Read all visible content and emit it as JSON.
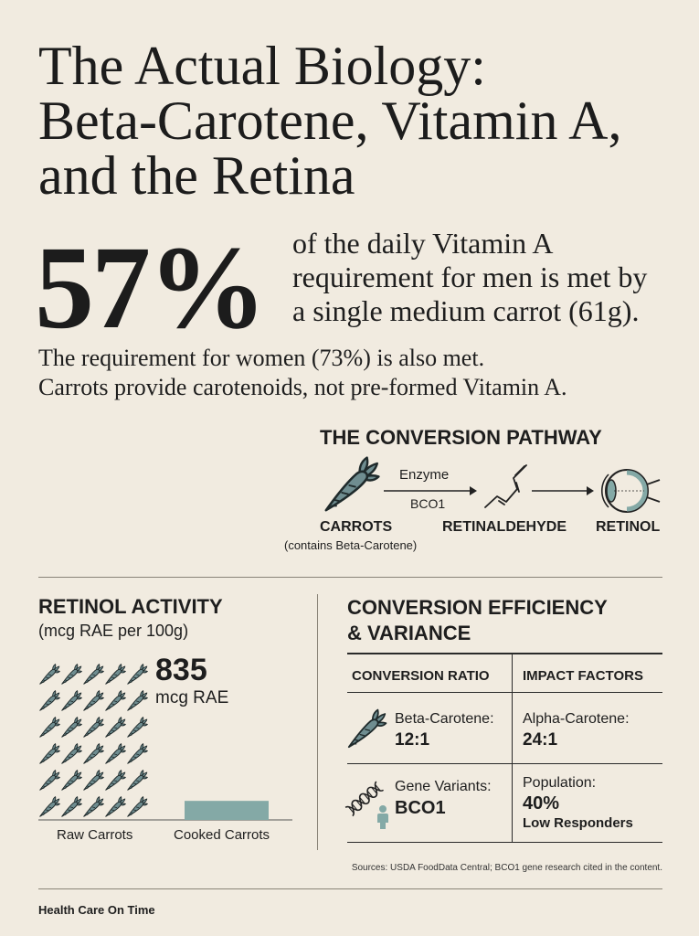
{
  "title": {
    "lines": [
      "The Actual Biology:",
      "Beta-Carotene, Vitamin A,",
      "and the Retina"
    ]
  },
  "headline_stat": {
    "value": "57%",
    "lines": [
      "of the daily Vitamin A",
      "requirement for men is met by",
      "a single medium carrot (61g)."
    ]
  },
  "note": {
    "lines": [
      "The requirement for women (73%) is also met.",
      "Carrots provide carotenoids, not pre-formed Vitamin A."
    ]
  },
  "pathway": {
    "heading": "THE CONVERSION PATHWAY",
    "enzyme_label": "Enzyme",
    "enzyme_name": "BCO1",
    "steps": [
      {
        "label": "CARROTS",
        "sublabel": "(contains Beta-Carotene)",
        "icon": "carrot-icon"
      },
      {
        "label": "RETINALDEHYDE",
        "icon": "molecule-icon"
      },
      {
        "label": "RETINOL",
        "icon": "eye-icon"
      }
    ]
  },
  "chart_data": {
    "type": "bar",
    "title": "RETINOL ACTIVITY",
    "subtitle": "(mcg RAE per 100g)",
    "categories": [
      "Raw Carrots",
      "Cooked Carrots"
    ],
    "values": [
      835,
      100
    ],
    "value_label": "835",
    "unit_label": "mcg RAE",
    "grid": false
  },
  "efficiency": {
    "heading_lines": [
      "CONVERSION EFFICIENCY",
      "& VARIANCE"
    ],
    "table": {
      "headers": [
        "CONVERSION RATIO",
        "IMPACT FACTORS"
      ],
      "rows": [
        [
          {
            "label": "Beta-Carotene:",
            "value": "12:1",
            "icon": "carrot-icon"
          },
          {
            "label": "Alpha-Carotene:",
            "value": "24:1"
          }
        ],
        [
          {
            "label": "Gene Variants:",
            "value": "BCO1",
            "icon": "dna-person-icon"
          },
          {
            "label": "Population:",
            "value": "40%",
            "note": "Low Responders"
          }
        ]
      ]
    }
  },
  "sources": "Sources: USDA FoodData Central; BCO1 gene research cited in the content.",
  "footer": {
    "brand": "Health Care On Time"
  },
  "colors": {
    "background": "#f1ebe0",
    "text": "#1e1e1e",
    "carrot": "#6f8d90",
    "outline": "#1f2a2b",
    "teal": "#84a9a6"
  }
}
